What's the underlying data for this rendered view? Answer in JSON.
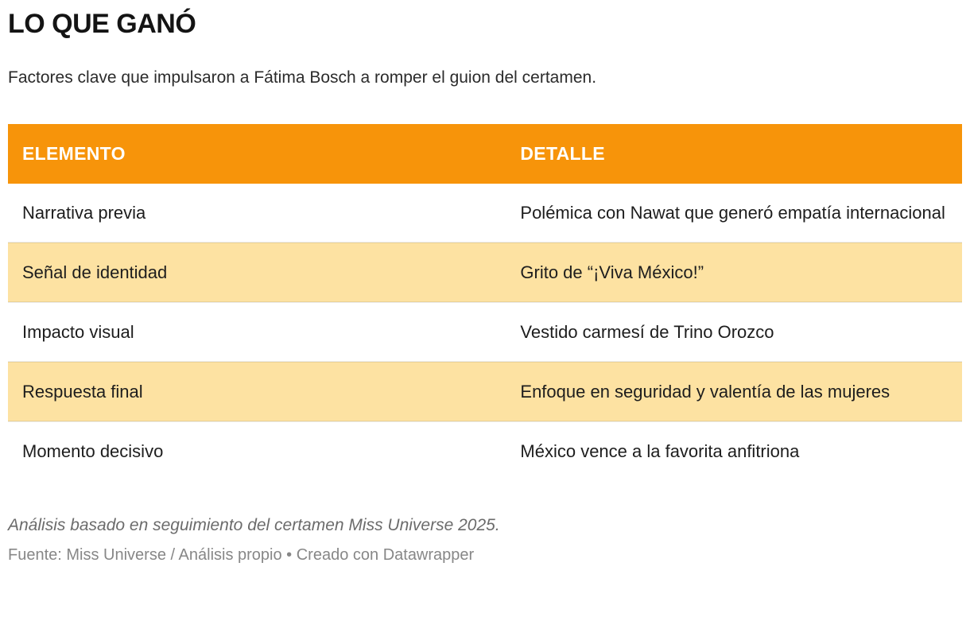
{
  "header": {
    "title": "LO QUE GANÓ",
    "subtitle": "Factores clave que impulsaron a Fátima Bosch a romper el guion del certamen."
  },
  "table": {
    "columns": {
      "elemento": "ELEMENTO",
      "detalle": "DETALLE"
    },
    "rows": [
      {
        "elemento": "Narrativa previa",
        "detalle": "Polémica con Nawat que generó empatía internacional",
        "highlighted": false
      },
      {
        "elemento": "Señal de identidad",
        "detalle": "Grito de “¡Viva México!”",
        "highlighted": true
      },
      {
        "elemento": "Impacto visual",
        "detalle": "Vestido carmesí de Trino Orozco",
        "highlighted": false
      },
      {
        "elemento": "Respuesta final",
        "detalle": "Enfoque en seguridad y valentía de las mujeres",
        "highlighted": true
      },
      {
        "elemento": "Momento decisivo",
        "detalle": "México vence a la favorita anfitriona",
        "highlighted": false
      }
    ]
  },
  "footer": {
    "note": "Análisis basado en seguimiento del certamen Miss Universe 2025.",
    "source_label": "Fuente: ",
    "source_text": "Miss Universe / Análisis propio",
    "separator": " • ",
    "byline": "Creado con Datawrapper"
  },
  "colors": {
    "header_bg": "#f7940a",
    "header_text": "#ffffff",
    "highlight_row_bg": "#fde2a2",
    "body_text": "#1d1d1d",
    "note_text": "#6b6b6b",
    "source_text": "#878787"
  }
}
